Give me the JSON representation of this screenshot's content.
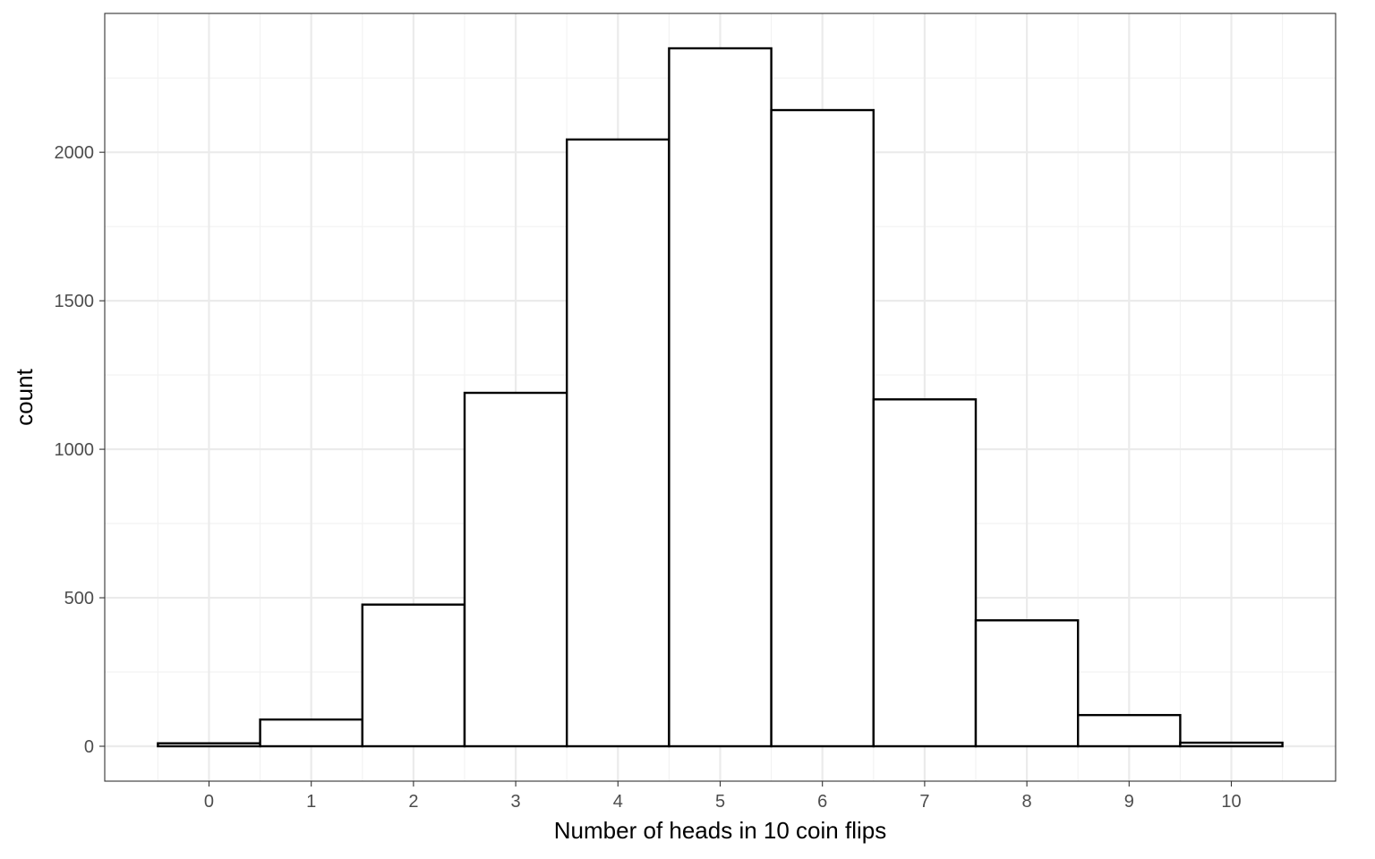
{
  "chart_data": {
    "type": "bar",
    "subtype": "histogram",
    "title": "",
    "xlabel": "Number of heads in 10 coin flips",
    "ylabel": "count",
    "categories": [
      0,
      1,
      2,
      3,
      4,
      5,
      6,
      7,
      8,
      9,
      10
    ],
    "values": [
      10,
      90,
      477,
      1190,
      2043,
      2350,
      2142,
      1168,
      424,
      105,
      12
    ],
    "bin_width": 1,
    "xlim": [
      -1.02,
      11.02
    ],
    "ylim": [
      -117.5,
      2467.5
    ],
    "x_ticks": [
      0,
      1,
      2,
      3,
      4,
      5,
      6,
      7,
      8,
      9,
      10
    ],
    "x_tick_labels": [
      "0",
      "1",
      "2",
      "3",
      "4",
      "5",
      "6",
      "7",
      "8",
      "9",
      "10"
    ],
    "y_ticks": [
      0,
      500,
      1000,
      1500,
      2000
    ],
    "y_tick_labels": [
      "0",
      "500",
      "1000",
      "1500",
      "2000"
    ],
    "grid": true,
    "legend": "none",
    "theme": "bw",
    "colors": {
      "bar_fill": "#ffffff",
      "bar_stroke": "#000000",
      "grid_major": "#ebebeb",
      "grid_minor": "#f2f2f2",
      "panel_border": "#333333",
      "tick_text": "#4d4d4d",
      "title_text": "#000000",
      "background": "#ffffff"
    }
  }
}
